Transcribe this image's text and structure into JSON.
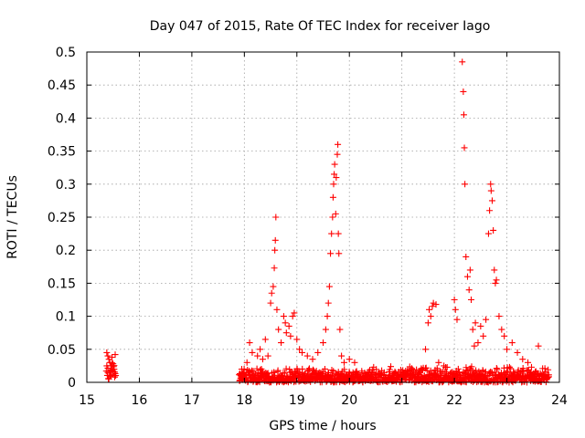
{
  "chart_data": {
    "type": "scatter",
    "title": "Day 047 of 2015, Rate Of TEC Index for receiver Iago",
    "xlabel": "GPS time / hours",
    "ylabel": "ROTI / TECUs",
    "xlim": [
      15,
      24
    ],
    "ylim": [
      0,
      0.5
    ],
    "xticks": [
      "15",
      "16",
      "17",
      "18",
      "19",
      "20",
      "21",
      "22",
      "23",
      "24"
    ],
    "yticks": [
      "0",
      "0.05",
      "0.1",
      "0.15",
      "0.2",
      "0.25",
      "0.3",
      "0.35",
      "0.4",
      "0.45",
      "0.5"
    ],
    "grid": true,
    "marker": "+",
    "series": [
      {
        "name": "ROTI",
        "color": "#ff0000",
        "points": [
          [
            15.38,
            0.045
          ],
          [
            15.4,
            0.04
          ],
          [
            15.42,
            0.035
          ],
          [
            15.44,
            0.03
          ],
          [
            15.46,
            0.025
          ],
          [
            15.48,
            0.038
          ],
          [
            15.5,
            0.028
          ],
          [
            15.52,
            0.02
          ],
          [
            15.54,
            0.042
          ],
          [
            15.4,
            0.015
          ],
          [
            15.45,
            0.01
          ],
          [
            15.5,
            0.012
          ],
          [
            15.53,
            0.008
          ],
          [
            17.95,
            0.02
          ],
          [
            18.05,
            0.03
          ],
          [
            18.1,
            0.06
          ],
          [
            18.15,
            0.045
          ],
          [
            18.25,
            0.04
          ],
          [
            18.3,
            0.05
          ],
          [
            18.35,
            0.035
          ],
          [
            18.4,
            0.065
          ],
          [
            18.45,
            0.04
          ],
          [
            18.5,
            0.12
          ],
          [
            18.52,
            0.135
          ],
          [
            18.55,
            0.145
          ],
          [
            18.57,
            0.173
          ],
          [
            18.58,
            0.2
          ],
          [
            18.59,
            0.215
          ],
          [
            18.6,
            0.25
          ],
          [
            18.62,
            0.11
          ],
          [
            18.65,
            0.08
          ],
          [
            18.7,
            0.06
          ],
          [
            18.75,
            0.1
          ],
          [
            18.78,
            0.09
          ],
          [
            18.8,
            0.075
          ],
          [
            18.85,
            0.085
          ],
          [
            18.88,
            0.07
          ],
          [
            18.92,
            0.1
          ],
          [
            18.95,
            0.105
          ],
          [
            19.0,
            0.065
          ],
          [
            19.05,
            0.05
          ],
          [
            19.1,
            0.045
          ],
          [
            19.2,
            0.04
          ],
          [
            19.3,
            0.035
          ],
          [
            19.4,
            0.045
          ],
          [
            19.5,
            0.06
          ],
          [
            19.55,
            0.08
          ],
          [
            19.58,
            0.1
          ],
          [
            19.6,
            0.12
          ],
          [
            19.62,
            0.145
          ],
          [
            19.64,
            0.195
          ],
          [
            19.66,
            0.225
          ],
          [
            19.68,
            0.25
          ],
          [
            19.69,
            0.28
          ],
          [
            19.7,
            0.3
          ],
          [
            19.71,
            0.315
          ],
          [
            19.72,
            0.33
          ],
          [
            19.74,
            0.255
          ],
          [
            19.75,
            0.31
          ],
          [
            19.77,
            0.345
          ],
          [
            19.78,
            0.36
          ],
          [
            19.79,
            0.225
          ],
          [
            19.8,
            0.195
          ],
          [
            19.82,
            0.08
          ],
          [
            19.85,
            0.04
          ],
          [
            19.9,
            0.03
          ],
          [
            20.0,
            0.035
          ],
          [
            20.1,
            0.03
          ],
          [
            21.45,
            0.05
          ],
          [
            21.5,
            0.09
          ],
          [
            21.52,
            0.11
          ],
          [
            21.55,
            0.1
          ],
          [
            21.58,
            0.115
          ],
          [
            21.6,
            0.12
          ],
          [
            21.65,
            0.118
          ],
          [
            21.7,
            0.03
          ],
          [
            21.8,
            0.025
          ],
          [
            22.0,
            0.125
          ],
          [
            22.02,
            0.11
          ],
          [
            22.05,
            0.095
          ],
          [
            22.15,
            0.485
          ],
          [
            22.17,
            0.44
          ],
          [
            22.18,
            0.405
          ],
          [
            22.19,
            0.355
          ],
          [
            22.2,
            0.3
          ],
          [
            22.22,
            0.19
          ],
          [
            22.25,
            0.16
          ],
          [
            22.28,
            0.14
          ],
          [
            22.3,
            0.17
          ],
          [
            22.32,
            0.125
          ],
          [
            22.35,
            0.08
          ],
          [
            22.38,
            0.055
          ],
          [
            22.4,
            0.09
          ],
          [
            22.45,
            0.06
          ],
          [
            22.5,
            0.085
          ],
          [
            22.55,
            0.07
          ],
          [
            22.6,
            0.095
          ],
          [
            22.65,
            0.225
          ],
          [
            22.67,
            0.26
          ],
          [
            22.69,
            0.3
          ],
          [
            22.7,
            0.29
          ],
          [
            22.72,
            0.275
          ],
          [
            22.74,
            0.23
          ],
          [
            22.76,
            0.17
          ],
          [
            22.78,
            0.15
          ],
          [
            22.8,
            0.155
          ],
          [
            22.85,
            0.1
          ],
          [
            22.9,
            0.08
          ],
          [
            22.95,
            0.07
          ],
          [
            23.0,
            0.05
          ],
          [
            23.1,
            0.06
          ],
          [
            23.2,
            0.045
          ],
          [
            23.3,
            0.035
          ],
          [
            23.4,
            0.03
          ],
          [
            23.6,
            0.055
          ]
        ]
      }
    ],
    "noise_floor": {
      "x_range": [
        17.9,
        23.8
      ],
      "y_max": 0.025
    }
  }
}
